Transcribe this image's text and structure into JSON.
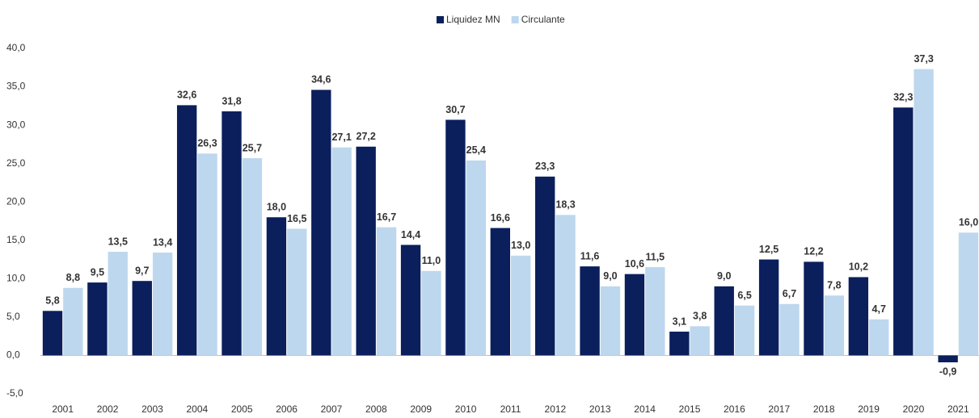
{
  "chart_data": {
    "type": "bar",
    "categories": [
      "2001",
      "2002",
      "2003",
      "2004",
      "2005",
      "2006",
      "2007",
      "2008",
      "2009",
      "2010",
      "2011",
      "2012",
      "2013",
      "2014",
      "2015",
      "2016",
      "2017",
      "2018",
      "2019",
      "2020",
      "2021"
    ],
    "series": [
      {
        "name": "Liquidez MN",
        "color": "#0a1f5c",
        "values": [
          5.8,
          9.5,
          9.7,
          32.6,
          31.8,
          18.0,
          34.6,
          27.2,
          14.4,
          30.7,
          16.6,
          23.3,
          11.6,
          10.6,
          3.1,
          9.0,
          12.5,
          12.2,
          10.2,
          32.3,
          -0.9
        ],
        "value_labels": [
          "5,8",
          "9,5",
          "9,7",
          "32,6",
          "31,8",
          "18,0",
          "34,6",
          "27,2",
          "14,4",
          "30,7",
          "16,6",
          "23,3",
          "11,6",
          "10,6",
          "3,1",
          "9,0",
          "12,5",
          "12,2",
          "10,2",
          "32,3",
          "-0,9"
        ]
      },
      {
        "name": "Circulante",
        "color": "#bdd7ee",
        "values": [
          8.8,
          13.5,
          13.4,
          26.3,
          25.7,
          16.5,
          27.1,
          16.7,
          11.0,
          25.4,
          13.0,
          18.3,
          9.0,
          11.5,
          3.8,
          6.5,
          6.7,
          7.8,
          4.7,
          37.3,
          16.0
        ],
        "value_labels": [
          "8,8",
          "13,5",
          "13,4",
          "26,3",
          "25,7",
          "16,5",
          "27,1",
          "16,7",
          "11,0",
          "25,4",
          "13,0",
          "18,3",
          "9,0",
          "11,5",
          "3,8",
          "6,5",
          "6,7",
          "7,8",
          "4,7",
          "37,3",
          "16,0"
        ]
      }
    ],
    "ylim": [
      -5,
      40
    ],
    "yticks": [
      {
        "value": -5,
        "label": "-5,0"
      },
      {
        "value": 0,
        "label": "0,0"
      },
      {
        "value": 5,
        "label": "5,0"
      },
      {
        "value": 10,
        "label": "10,0"
      },
      {
        "value": 15,
        "label": "15,0"
      },
      {
        "value": 20,
        "label": "20,0"
      },
      {
        "value": 25,
        "label": "25,0"
      },
      {
        "value": 30,
        "label": "30,0"
      },
      {
        "value": 35,
        "label": "35,0"
      },
      {
        "value": 40,
        "label": "40,0"
      }
    ],
    "legend": "top",
    "grid": false
  }
}
